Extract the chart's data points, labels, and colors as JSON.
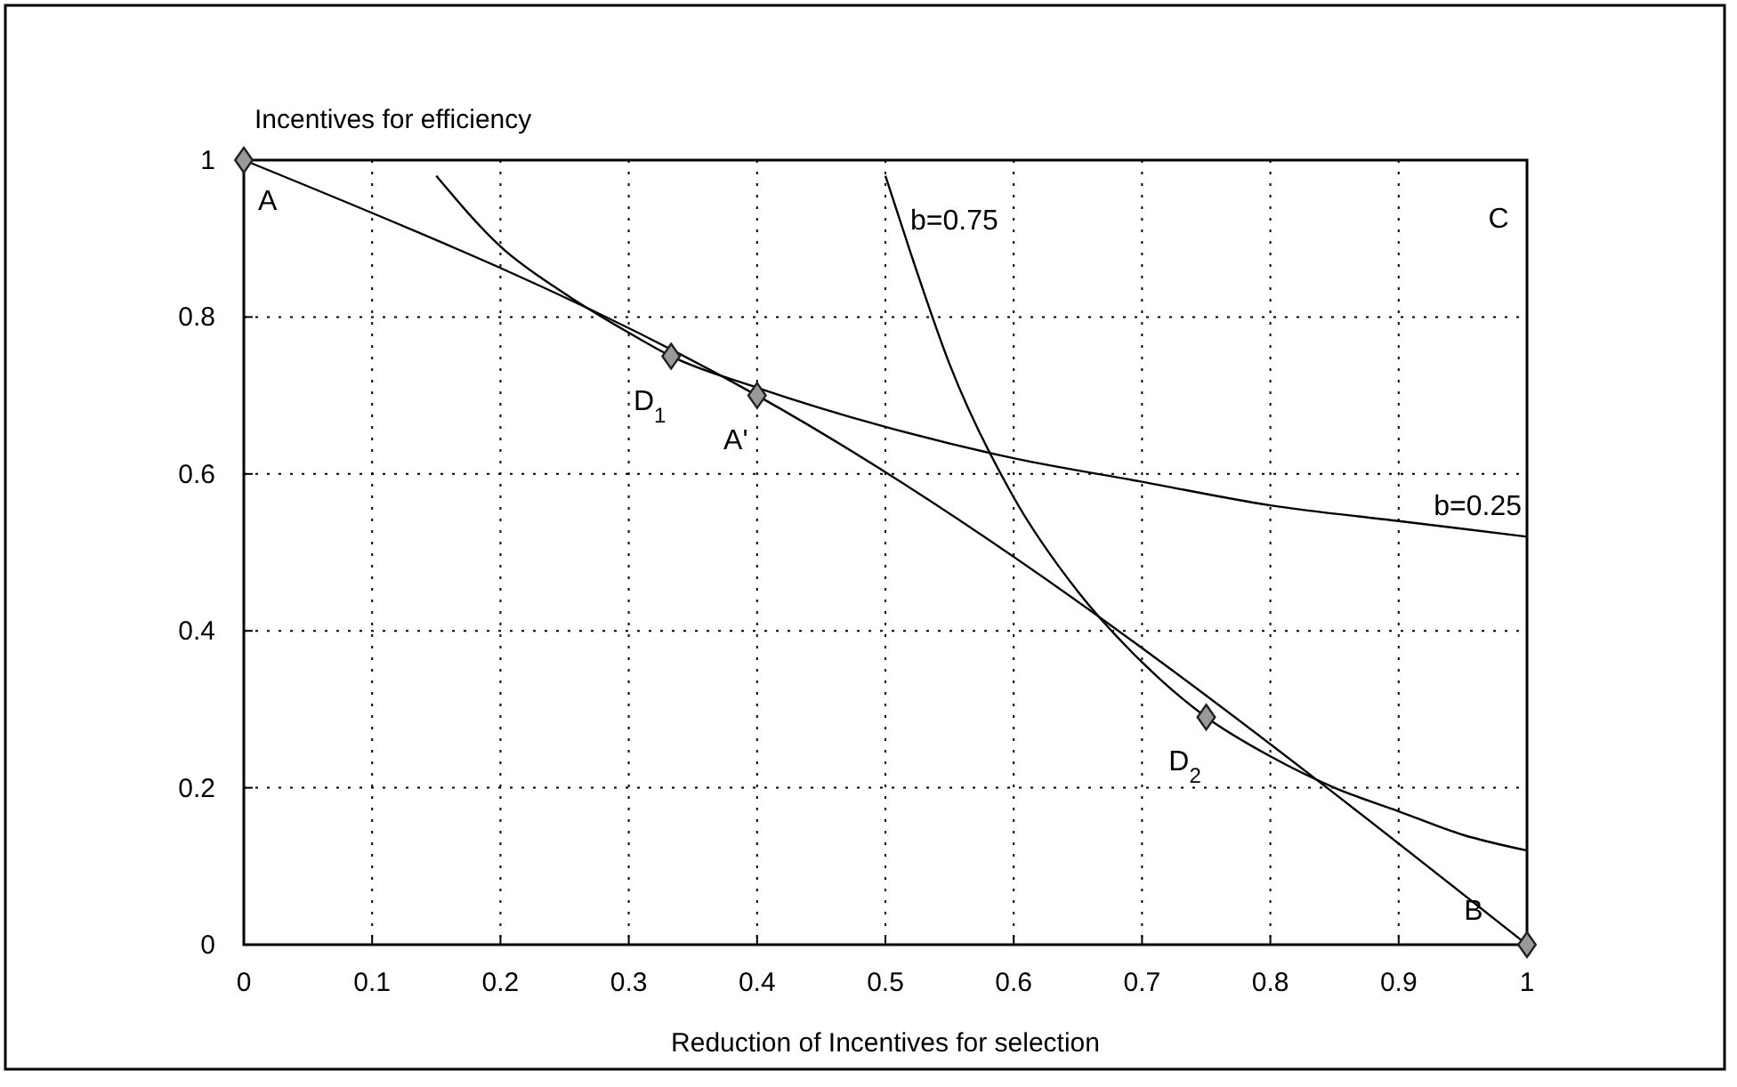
{
  "chart_data": {
    "type": "line",
    "xlabel": "Reduction of Incentives for selection",
    "ylabel": "Incentives for efficiency",
    "xlim": [
      0,
      1
    ],
    "ylim": [
      0,
      1
    ],
    "xticks": [
      0,
      0.1,
      0.2,
      0.3,
      0.4,
      0.5,
      0.6,
      0.7,
      0.8,
      0.9,
      1
    ],
    "yticks": [
      0,
      0.2,
      0.4,
      0.6,
      0.8,
      1
    ],
    "grid": true,
    "series": [
      {
        "color": "#000000",
        "x": [
          0,
          0.4,
          1
        ],
        "values": [
          1,
          0.7,
          0
        ]
      },
      {
        "name": "b=0.25",
        "color": "#000000",
        "x": [
          0.15,
          0.2,
          0.25,
          0.3,
          0.333,
          0.4,
          0.5,
          0.6,
          0.7,
          0.8,
          0.9,
          1
        ],
        "values": [
          0.98,
          0.89,
          0.83,
          0.78,
          0.75,
          0.71,
          0.66,
          0.62,
          0.59,
          0.56,
          0.54,
          0.52
        ]
      },
      {
        "name": "b=0.75",
        "color": "#000000",
        "x": [
          0.5,
          0.52,
          0.55,
          0.6,
          0.65,
          0.7,
          0.75,
          0.8,
          0.85,
          0.9,
          0.95,
          1
        ],
        "values": [
          0.98,
          0.88,
          0.74,
          0.57,
          0.45,
          0.36,
          0.29,
          0.24,
          0.2,
          0.17,
          0.14,
          0.12
        ]
      },
      {
        "type": "scatter",
        "color": "#999999",
        "marker": "diamond",
        "x": [
          0,
          0.333,
          0.4,
          0.75,
          1
        ],
        "values": [
          1,
          0.75,
          0.7,
          0.29,
          0
        ]
      }
    ],
    "annotations": [
      {
        "text": "A",
        "x": 0,
        "y": 1
      },
      {
        "text": "D$_{1}$",
        "x": 0.333,
        "y": 0.75
      },
      {
        "text": "A'",
        "x": 0.4,
        "y": 0.7
      },
      {
        "text": "D$_{2}$",
        "x": 0.75,
        "y": 0.29
      },
      {
        "text": "B",
        "x": 1,
        "y": 0
      },
      "C"
    ]
  }
}
